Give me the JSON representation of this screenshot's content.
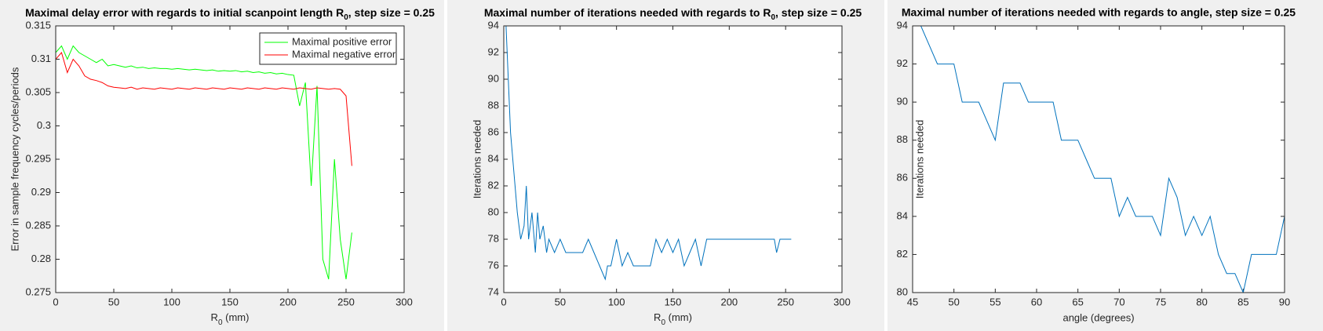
{
  "chart_data": [
    {
      "type": "line",
      "title": [
        "Maximal delay error with regards to initial scanpoint length R",
        "0",
        ", step size = 0.25"
      ],
      "xlabel": [
        "R",
        "0",
        " (mm)"
      ],
      "ylabel": "Error in sample frequency cycles/periods",
      "x": [
        0,
        5,
        10,
        15,
        20,
        25,
        30,
        35,
        40,
        45,
        50,
        55,
        60,
        65,
        70,
        75,
        80,
        85,
        90,
        95,
        100,
        105,
        110,
        115,
        120,
        125,
        130,
        135,
        140,
        145,
        150,
        155,
        160,
        165,
        170,
        175,
        180,
        185,
        190,
        195,
        200,
        205,
        210,
        215,
        220,
        225,
        230,
        235,
        240,
        245,
        250,
        255
      ],
      "series": [
        {
          "name": "Maximal positive error",
          "color": "#00ff00",
          "values": [
            0.311,
            0.312,
            0.31,
            0.312,
            0.311,
            0.3105,
            0.31,
            0.3095,
            0.31,
            0.309,
            0.3092,
            0.309,
            0.3088,
            0.309,
            0.3087,
            0.3088,
            0.3086,
            0.3087,
            0.3086,
            0.3086,
            0.3085,
            0.3086,
            0.3085,
            0.3084,
            0.3085,
            0.3084,
            0.3083,
            0.3084,
            0.3082,
            0.3083,
            0.3082,
            0.3083,
            0.3081,
            0.3082,
            0.308,
            0.3081,
            0.3079,
            0.308,
            0.3078,
            0.3079,
            0.3077,
            0.3076,
            0.303,
            0.3065,
            0.291,
            0.306,
            0.28,
            0.277,
            0.295,
            0.283,
            0.277,
            0.284
          ]
        },
        {
          "name": "Maximal negative error",
          "color": "#ff0000",
          "values": [
            0.31,
            0.311,
            0.308,
            0.31,
            0.309,
            0.3075,
            0.307,
            0.3068,
            0.3065,
            0.306,
            0.3058,
            0.3057,
            0.3056,
            0.3058,
            0.3055,
            0.3057,
            0.3056,
            0.3055,
            0.3057,
            0.3056,
            0.3055,
            0.3057,
            0.3056,
            0.3055,
            0.3057,
            0.3056,
            0.3055,
            0.3057,
            0.3056,
            0.3055,
            0.3057,
            0.3056,
            0.3055,
            0.3057,
            0.3056,
            0.3055,
            0.3057,
            0.3056,
            0.3055,
            0.3057,
            0.3056,
            0.3055,
            0.3057,
            0.3056,
            0.3055,
            0.3057,
            0.3056,
            0.3055,
            0.3056,
            0.3055,
            0.3045,
            0.294
          ]
        }
      ],
      "xlim": [
        0,
        300
      ],
      "xticks": [
        0,
        50,
        100,
        150,
        200,
        250,
        300
      ],
      "ylim": [
        0.275,
        0.315
      ],
      "yticks": [
        0.275,
        0.28,
        0.285,
        0.29,
        0.295,
        0.3,
        0.305,
        0.31,
        0.315
      ],
      "legend": "northeast"
    },
    {
      "type": "line",
      "title": [
        "Maximal number of iterations needed with regards to R",
        "0",
        ", step size = 0.25"
      ],
      "xlabel": [
        "R",
        "0",
        " (mm)"
      ],
      "ylabel": "Iterations needed",
      "x": [
        0,
        2,
        4,
        6,
        8,
        10,
        12,
        15,
        18,
        20,
        22,
        25,
        28,
        30,
        32,
        35,
        38,
        40,
        45,
        50,
        55,
        60,
        65,
        70,
        75,
        80,
        85,
        90,
        92,
        95,
        100,
        105,
        110,
        115,
        120,
        125,
        130,
        135,
        140,
        145,
        150,
        155,
        160,
        165,
        170,
        175,
        180,
        185,
        190,
        200,
        210,
        220,
        230,
        240,
        242,
        245,
        250,
        255
      ],
      "series": [
        {
          "color": "#0072bd",
          "values": [
            94,
            94,
            90,
            86,
            84,
            82,
            80,
            78,
            79,
            82,
            78,
            80,
            77,
            80,
            78,
            79,
            77,
            78,
            77,
            78,
            77,
            77,
            77,
            77,
            78,
            77,
            76,
            75,
            76,
            76,
            78,
            76,
            77,
            76,
            76,
            76,
            76,
            78,
            77,
            78,
            77,
            78,
            76,
            77,
            78,
            76,
            78,
            78,
            78,
            78,
            78,
            78,
            78,
            78,
            77,
            78,
            78,
            78
          ]
        }
      ],
      "xlim": [
        0,
        300
      ],
      "xticks": [
        0,
        50,
        100,
        150,
        200,
        250,
        300
      ],
      "ylim": [
        74,
        94
      ],
      "yticks": [
        74,
        76,
        78,
        80,
        82,
        84,
        86,
        88,
        90,
        92,
        94
      ]
    },
    {
      "type": "line",
      "title": "Maximal number of iterations needed with regards to angle, step size = 0.25",
      "xlabel": "angle (degrees)",
      "ylabel": "Iterations needed",
      "x": [
        45,
        46,
        47,
        48,
        49,
        50,
        51,
        52,
        53,
        54,
        55,
        56,
        57,
        58,
        59,
        60,
        61,
        62,
        63,
        64,
        65,
        66,
        67,
        68,
        69,
        70,
        71,
        72,
        73,
        74,
        75,
        76,
        77,
        78,
        79,
        80,
        81,
        82,
        83,
        84,
        85,
        86,
        87,
        88,
        89,
        90
      ],
      "series": [
        {
          "color": "#0072bd",
          "values": [
            94,
            94,
            93,
            92,
            92,
            92,
            90,
            90,
            90,
            89,
            88,
            91,
            91,
            91,
            90,
            90,
            90,
            90,
            88,
            88,
            88,
            87,
            86,
            86,
            86,
            84,
            85,
            84,
            84,
            84,
            83,
            86,
            85,
            83,
            84,
            83,
            84,
            82,
            81,
            81,
            80,
            82,
            82,
            82,
            82,
            84
          ]
        }
      ],
      "xlim": [
        45,
        90
      ],
      "xticks": [
        45,
        50,
        55,
        60,
        65,
        70,
        75,
        80,
        85,
        90
      ],
      "ylim": [
        80,
        94
      ],
      "yticks": [
        80,
        82,
        84,
        86,
        88,
        90,
        92,
        94
      ]
    }
  ]
}
